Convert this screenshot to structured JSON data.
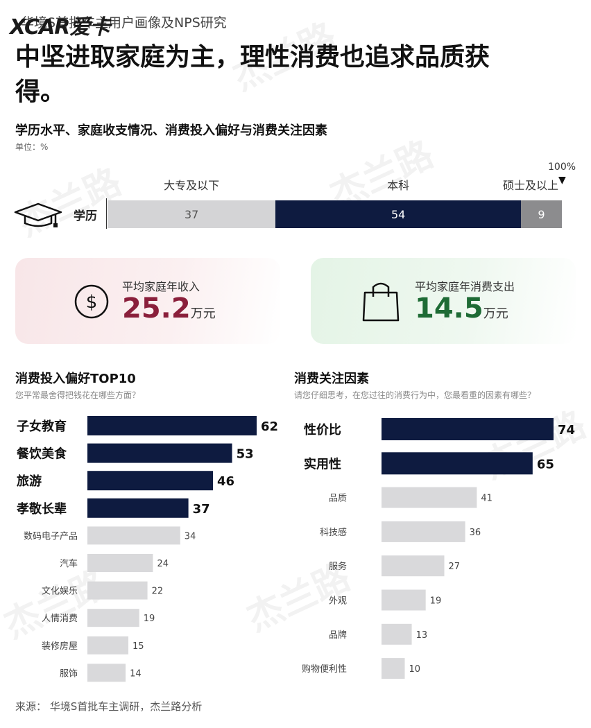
{
  "logo": "XCAR爱卡",
  "header": {
    "subtitle": "华境S首批车主用户画像及NPS研究",
    "title": "中坚进取家庭为主，理性消费也追求品质获得。"
  },
  "section": {
    "title": "学历水平、家庭收支情况、消费投入偏好与消费关注因素",
    "unit": "单位：%"
  },
  "education": {
    "label": "学历",
    "hundred_label": "100%",
    "arrow": "▼",
    "segments": [
      {
        "name": "大专及以下",
        "value": 37,
        "color": "#d4d4d6",
        "text_color": "#555555"
      },
      {
        "name": "本科",
        "value": 54,
        "color": "#0e1b40",
        "text_color": "#ffffff"
      },
      {
        "name": "硕士及以上",
        "value": 9,
        "color": "#8c8c8e",
        "text_color": "#ffffff"
      }
    ]
  },
  "income": {
    "label": "平均家庭年收入",
    "value": "25.2",
    "unit": "万元",
    "color": "#8a1f3b",
    "icon": "dollar-circle-icon"
  },
  "expense": {
    "label": "平均家庭年消费支出",
    "value": "14.5",
    "unit": "万元",
    "color": "#1e6b35",
    "icon": "shopping-bag-icon"
  },
  "chart_data": [
    {
      "type": "bar",
      "orientation": "horizontal",
      "title": "消费投入偏好TOP10",
      "subtitle": "您平常最舍得把钱花在哪些方面？",
      "categories": [
        "子女教育",
        "餐饮美食",
        "旅游",
        "孝敬长辈",
        "数码电子产品",
        "汽车",
        "文化娱乐",
        "人情消费",
        "装修房屋",
        "服饰"
      ],
      "values": [
        62,
        53,
        46,
        37,
        34,
        24,
        22,
        19,
        15,
        14
      ],
      "highlight_count": 4,
      "highlight_color": "#0e1b40",
      "base_color": "#d9d9db"
    },
    {
      "type": "bar",
      "orientation": "horizontal",
      "title": "消费关注因素",
      "subtitle": "请您仔细思考，在您过往的消费行为中，您最看重的因素有哪些？",
      "categories": [
        "性价比",
        "实用性",
        "品质",
        "科技感",
        "服务",
        "外观",
        "品牌",
        "购物便利性"
      ],
      "values": [
        74,
        65,
        41,
        36,
        27,
        19,
        13,
        10
      ],
      "highlight_count": 2,
      "highlight_color": "#0e1b40",
      "base_color": "#d9d9db"
    }
  ],
  "source": "来源：  华境S首批车主调研，杰兰路分析",
  "watermark": "杰兰路"
}
